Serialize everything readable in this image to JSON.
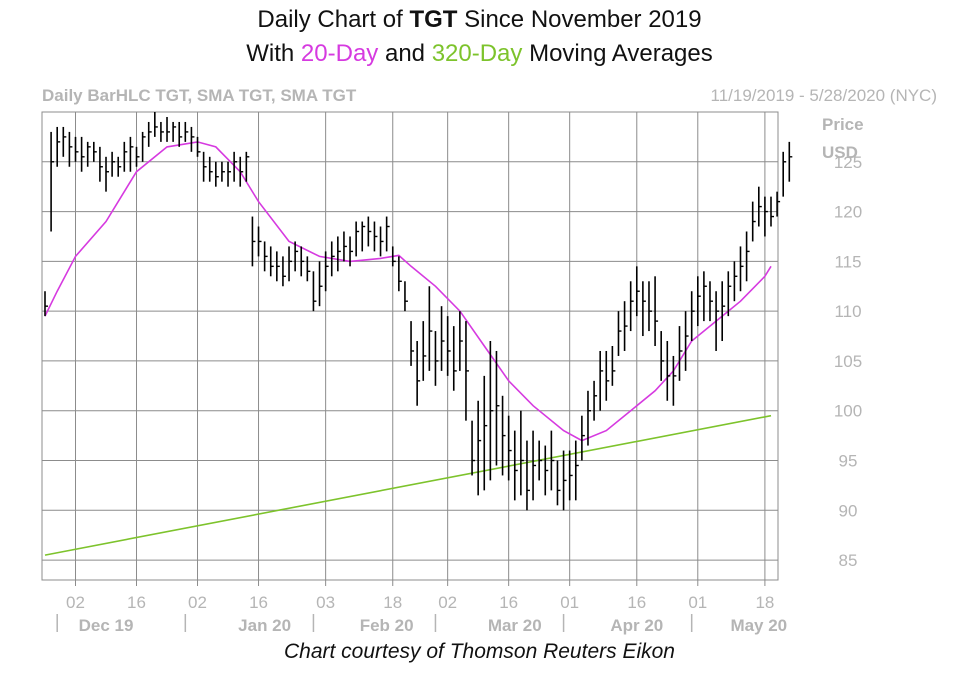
{
  "title": {
    "line1_pre": "Daily Chart of ",
    "line1_ticker": "TGT",
    "line1_post": " Since November 2019",
    "line2_pre": "With ",
    "line2_ma1": "20-Day",
    "line2_mid": " and ",
    "line2_ma2": "320-Day",
    "line2_post": " Moving Averages"
  },
  "header": {
    "left": "Daily BarHLC TGT, SMA TGT, SMA TGT",
    "right": "11/19/2019 - 5/28/2020 (NYC)"
  },
  "price_label": {
    "line1": "Price",
    "line2": "USD"
  },
  "courtesy": "Chart courtesy of Thomson Reuters Eikon",
  "colors": {
    "ma20": "#d63ae0",
    "ma320": "#7dc32c",
    "bars": "#000000",
    "grid": "#8c8c8c",
    "labels": "#b5b5b5"
  },
  "chart_data": {
    "type": "ohlc",
    "ylim": [
      83,
      130
    ],
    "yticks": [
      85,
      90,
      95,
      100,
      105,
      110,
      115,
      120,
      125
    ],
    "xticks": [
      {
        "label": "02",
        "i": 5
      },
      {
        "label": "16",
        "i": 15
      },
      {
        "label": "02",
        "i": 25
      },
      {
        "label": "16",
        "i": 35
      },
      {
        "label": "03",
        "i": 46
      },
      {
        "label": "18",
        "i": 57
      },
      {
        "label": "02",
        "i": 66
      },
      {
        "label": "16",
        "i": 76
      },
      {
        "label": "01",
        "i": 86
      },
      {
        "label": "16",
        "i": 97
      },
      {
        "label": "01",
        "i": 107
      },
      {
        "label": "18",
        "i": 118
      }
    ],
    "months": [
      {
        "label": "Dec 19",
        "i": 10
      },
      {
        "label": "Jan 20",
        "i": 36
      },
      {
        "label": "Feb 20",
        "i": 56
      },
      {
        "label": "Mar 20",
        "i": 77
      },
      {
        "label": "Apr 20",
        "i": 97
      },
      {
        "label": "May 20",
        "i": 117
      }
    ],
    "month_separators": [
      2,
      23,
      44,
      64,
      85,
      106
    ],
    "n_bars": 120,
    "bars": [
      [
        112,
        109.5,
        110.5
      ],
      [
        128,
        118,
        125
      ],
      [
        128.5,
        124.5,
        127
      ],
      [
        128.5,
        125.5,
        127.5
      ],
      [
        128,
        124.5,
        126.5
      ],
      [
        127.5,
        125,
        126
      ],
      [
        127.5,
        124,
        125.5
      ],
      [
        127,
        124.5,
        126.5
      ],
      [
        127,
        125,
        126
      ],
      [
        126.5,
        123,
        124.5
      ],
      [
        125.5,
        122,
        124
      ],
      [
        126,
        123.5,
        125
      ],
      [
        125.5,
        123.5,
        124.5
      ],
      [
        127,
        124,
        126
      ],
      [
        127.5,
        124,
        126.5
      ],
      [
        126.5,
        124.5,
        125.5
      ],
      [
        128,
        125,
        127.5
      ],
      [
        129,
        126.5,
        128
      ],
      [
        130,
        127.5,
        128.5
      ],
      [
        129,
        127,
        128
      ],
      [
        129.5,
        127,
        128
      ],
      [
        129,
        127,
        128.5
      ],
      [
        129,
        126.5,
        127.5
      ],
      [
        129,
        127,
        128
      ],
      [
        128.5,
        126,
        127.5
      ],
      [
        127.5,
        125.5,
        126
      ],
      [
        126,
        123,
        124.5
      ],
      [
        125.5,
        123,
        124
      ],
      [
        125,
        122.5,
        123.5
      ],
      [
        125,
        123,
        124
      ],
      [
        125,
        122.5,
        124
      ],
      [
        126,
        123,
        125
      ],
      [
        125.5,
        122.5,
        124
      ],
      [
        126,
        123,
        125.5
      ],
      [
        119.5,
        114.5,
        117
      ],
      [
        118.5,
        115.5,
        117
      ],
      [
        117,
        114,
        115.5
      ],
      [
        116.5,
        113.5,
        114.5
      ],
      [
        116,
        113,
        114.5
      ],
      [
        115.5,
        112.5,
        113.5
      ],
      [
        116.5,
        113,
        115
      ],
      [
        117,
        114,
        116
      ],
      [
        116.5,
        113.5,
        115
      ],
      [
        115.5,
        113,
        114
      ],
      [
        114,
        110,
        111
      ],
      [
        115,
        110.5,
        112.5
      ],
      [
        116,
        112,
        114.5
      ],
      [
        117,
        113.5,
        115.5
      ],
      [
        117.5,
        114,
        116
      ],
      [
        118,
        115,
        116.5
      ],
      [
        117.5,
        114.5,
        116
      ],
      [
        119,
        115.5,
        118
      ],
      [
        119,
        116,
        118.5
      ],
      [
        119.5,
        116.5,
        118
      ],
      [
        119,
        116,
        117.5
      ],
      [
        118.5,
        115.5,
        117
      ],
      [
        119.5,
        116,
        118.5
      ],
      [
        116.5,
        114.5,
        115
      ],
      [
        115.5,
        112,
        113
      ],
      [
        113,
        110,
        111
      ],
      [
        109,
        104.5,
        106
      ],
      [
        107,
        100.5,
        103
      ],
      [
        109,
        103,
        105.5
      ],
      [
        112.5,
        104,
        108
      ],
      [
        108,
        102.5,
        105
      ],
      [
        110.5,
        104,
        107
      ],
      [
        109.5,
        103.5,
        106
      ],
      [
        108.5,
        102,
        104
      ],
      [
        110,
        104,
        107
      ],
      [
        109,
        99,
        104
      ],
      [
        99,
        93.5,
        95
      ],
      [
        101,
        91.5,
        97
      ],
      [
        103.5,
        92,
        98.5
      ],
      [
        107,
        93,
        100
      ],
      [
        106,
        94.5,
        100.5
      ],
      [
        101.5,
        93.5,
        97.5
      ],
      [
        99.5,
        93,
        96
      ],
      [
        98,
        91,
        94
      ],
      [
        100,
        91.5,
        95
      ],
      [
        97,
        90,
        92
      ],
      [
        98,
        91,
        94.5
      ],
      [
        97,
        93,
        95
      ],
      [
        96.5,
        91.5,
        94
      ],
      [
        98,
        92,
        95
      ],
      [
        95,
        90.5,
        92
      ],
      [
        96,
        90,
        93
      ],
      [
        96,
        91,
        93.5
      ],
      [
        97,
        91,
        94.5
      ],
      [
        99.5,
        95,
        97.5
      ],
      [
        102,
        96.5,
        100
      ],
      [
        103,
        99,
        101.5
      ],
      [
        106,
        100,
        104
      ],
      [
        106,
        101,
        103
      ],
      [
        106.5,
        102.5,
        104
      ],
      [
        110,
        105.5,
        108
      ],
      [
        111,
        106,
        108.5
      ],
      [
        113,
        108,
        111
      ],
      [
        114.5,
        109.5,
        112
      ],
      [
        113,
        107.5,
        111
      ],
      [
        113,
        108,
        110
      ],
      [
        113.5,
        106.5,
        109
      ],
      [
        108,
        103,
        105
      ],
      [
        107,
        101,
        103.5
      ],
      [
        105.5,
        100.5,
        103.5
      ],
      [
        108.5,
        103,
        106
      ],
      [
        110,
        104,
        107.5
      ],
      [
        112,
        107,
        110
      ],
      [
        113.5,
        108.5,
        111.5
      ],
      [
        114,
        109,
        112.5
      ],
      [
        113,
        109,
        111
      ],
      [
        112,
        106,
        110
      ],
      [
        113,
        107,
        110.5
      ],
      [
        114,
        109.5,
        112.5
      ],
      [
        115,
        111,
        113.5
      ],
      [
        116.5,
        112,
        114.5
      ],
      [
        118,
        113,
        116
      ],
      [
        121,
        117,
        119
      ],
      [
        122.5,
        118.5,
        120.5
      ],
      [
        121.5,
        117.5,
        120
      ],
      [
        121.5,
        118.5,
        119.5
      ],
      [
        122,
        119.5,
        121
      ],
      [
        126,
        121.5,
        125
      ],
      [
        127,
        123,
        125.5
      ]
    ],
    "series": [
      {
        "name": "20-Day",
        "color": "#d63ae0",
        "points": [
          [
            0,
            109.5
          ],
          [
            2,
            112
          ],
          [
            5,
            115.5
          ],
          [
            10,
            119
          ],
          [
            15,
            124
          ],
          [
            20,
            126.5
          ],
          [
            25,
            127
          ],
          [
            28,
            126.5
          ],
          [
            32,
            124
          ],
          [
            35,
            121
          ],
          [
            40,
            117
          ],
          [
            45,
            115.5
          ],
          [
            50,
            115
          ],
          [
            55,
            115.3
          ],
          [
            58,
            115.6
          ],
          [
            60,
            114.5
          ],
          [
            64,
            112.5
          ],
          [
            68,
            110
          ],
          [
            72,
            106.5
          ],
          [
            76,
            103
          ],
          [
            80,
            100.5
          ],
          [
            85,
            98
          ],
          [
            88,
            97
          ],
          [
            92,
            98
          ],
          [
            96,
            100
          ],
          [
            100,
            102
          ],
          [
            103,
            104
          ],
          [
            106,
            107
          ],
          [
            110,
            109
          ],
          [
            114,
            111
          ],
          [
            118,
            113.5
          ],
          [
            119,
            114.5
          ]
        ]
      },
      {
        "name": "320-Day",
        "color": "#7dc32c",
        "points": [
          [
            0,
            85.5
          ],
          [
            119,
            99.5
          ]
        ]
      }
    ]
  }
}
